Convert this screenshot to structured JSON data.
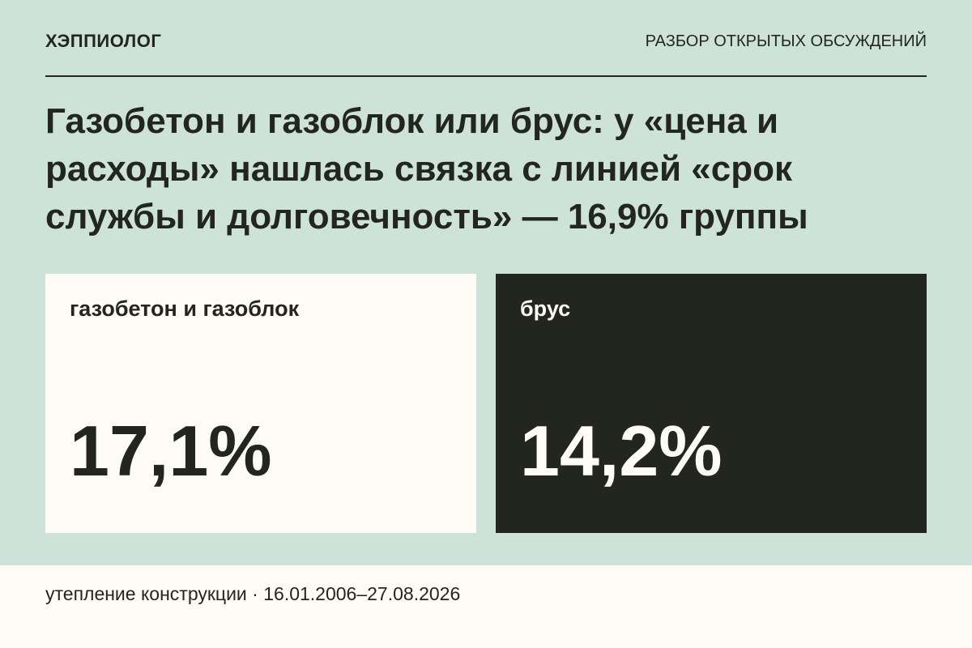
{
  "header": {
    "brand": "ХЭППИОЛОГ",
    "section": "РАЗБОР ОТКРЫТЫХ ОБСУЖДЕНИЙ"
  },
  "title": "Газобетон и газоблок или брус: у «цена и расходы» нашлась связка с линией «срок службы и долговечность» — 16,9% группы",
  "cards": [
    {
      "label": "газобетон и газоблок",
      "value": "17,1%"
    },
    {
      "label": "брус",
      "value": "14,2%"
    }
  ],
  "footer": {
    "topic": "утепление конструкции",
    "separator": "·",
    "period": "16.01.2006–27.08.2026"
  }
}
